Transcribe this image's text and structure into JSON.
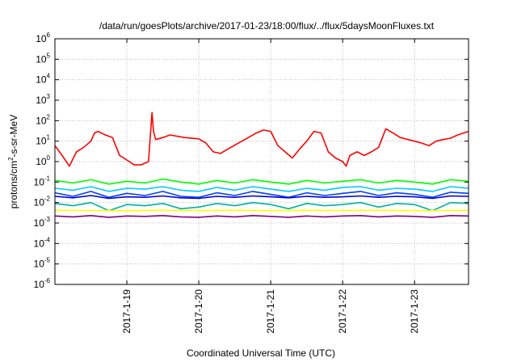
{
  "chart_data": {
    "type": "line",
    "title": "/data/run/goesPlots/archive/2017-01-23/18:00/flux/../flux/5daysMoonFluxes.txt",
    "xlabel": "Coordinated Universal Time (UTC)",
    "ylabel": "protons/cm2-s-sr-MeV",
    "ylabel_parts": {
      "a": "protons/cm",
      "sup": "2",
      "b": "-s-sr-MeV"
    },
    "y_scale": "log",
    "ylim": [
      1e-06,
      1000000.0
    ],
    "y_ticks": [
      {
        "base": "10",
        "exp": "-6",
        "value": 1e-06
      },
      {
        "base": "10",
        "exp": "-5",
        "value": 1e-05
      },
      {
        "base": "10",
        "exp": "-4",
        "value": 0.0001
      },
      {
        "base": "10",
        "exp": "-3",
        "value": 0.001
      },
      {
        "base": "10",
        "exp": "-2",
        "value": 0.01
      },
      {
        "base": "10",
        "exp": "-1",
        "value": 0.1
      },
      {
        "base": "10",
        "exp": "0",
        "value": 1
      },
      {
        "base": "10",
        "exp": "1",
        "value": 10
      },
      {
        "base": "10",
        "exp": "2",
        "value": 100
      },
      {
        "base": "10",
        "exp": "3",
        "value": 1000
      },
      {
        "base": "10",
        "exp": "4",
        "value": 10000
      },
      {
        "base": "10",
        "exp": "5",
        "value": 100000
      },
      {
        "base": "10",
        "exp": "6",
        "value": 1000000
      }
    ],
    "x_unit": "days since 2017-01-18 00:00 UTC",
    "xlim": [
      0.0,
      5.75
    ],
    "x_ticks": [
      {
        "label": "2017-1-19",
        "value": 1
      },
      {
        "label": "2017-1-20",
        "value": 2
      },
      {
        "label": "2017-1-21",
        "value": 3
      },
      {
        "label": "2017-1-22",
        "value": 4
      },
      {
        "label": "2017-1-23",
        "value": 5
      }
    ],
    "grid": true,
    "series": [
      {
        "color": "#ff0000",
        "x": [
          0.0,
          0.1,
          0.2,
          0.3,
          0.4,
          0.5,
          0.55,
          0.6,
          0.7,
          0.8,
          0.9,
          1.0,
          1.1,
          1.2,
          1.3,
          1.35,
          1.37,
          1.4,
          1.5,
          1.6,
          1.8,
          2.0,
          2.1,
          2.2,
          2.3,
          2.4,
          2.6,
          2.8,
          2.9,
          3.0,
          3.1,
          3.2,
          3.3,
          3.4,
          3.5,
          3.6,
          3.7,
          3.8,
          3.9,
          4.0,
          4.05,
          4.1,
          4.2,
          4.3,
          4.4,
          4.5,
          4.6,
          4.7,
          4.8,
          5.0,
          5.1,
          5.2,
          5.3,
          5.4,
          5.5,
          5.6,
          5.75
        ],
        "values": [
          6,
          2,
          0.6,
          3,
          5,
          10,
          25,
          30,
          20,
          15,
          2,
          1.2,
          0.7,
          0.7,
          1,
          250,
          30,
          12,
          15,
          20,
          15,
          13,
          8,
          3,
          2.5,
          4,
          10,
          25,
          35,
          30,
          6,
          3,
          1.5,
          4,
          10,
          30,
          25,
          3,
          1.5,
          1,
          0.6,
          2,
          3,
          2,
          3,
          5,
          40,
          25,
          15,
          10,
          8,
          6,
          10,
          12,
          14,
          20,
          30
        ]
      },
      {
        "color": "#00ff00",
        "x": [
          0.0,
          0.25,
          0.5,
          0.75,
          1.0,
          1.25,
          1.5,
          1.75,
          2.0,
          2.25,
          2.5,
          2.75,
          3.0,
          3.25,
          3.5,
          3.75,
          4.0,
          4.25,
          4.5,
          4.75,
          5.0,
          5.25,
          5.5,
          5.75
        ],
        "values": [
          0.12,
          0.09,
          0.13,
          0.08,
          0.11,
          0.09,
          0.14,
          0.1,
          0.08,
          0.12,
          0.09,
          0.13,
          0.1,
          0.08,
          0.12,
          0.09,
          0.11,
          0.13,
          0.09,
          0.12,
          0.1,
          0.08,
          0.13,
          0.11
        ]
      },
      {
        "color": "#00c8ff",
        "x": [
          0.0,
          0.25,
          0.5,
          0.75,
          1.0,
          1.25,
          1.5,
          1.75,
          2.0,
          2.25,
          2.5,
          2.75,
          3.0,
          3.25,
          3.5,
          3.75,
          4.0,
          4.25,
          4.5,
          4.75,
          5.0,
          5.25,
          5.5,
          5.75
        ],
        "values": [
          0.05,
          0.04,
          0.06,
          0.035,
          0.05,
          0.045,
          0.06,
          0.04,
          0.035,
          0.055,
          0.04,
          0.06,
          0.045,
          0.035,
          0.05,
          0.04,
          0.055,
          0.06,
          0.04,
          0.05,
          0.045,
          0.035,
          0.06,
          0.05
        ]
      },
      {
        "color": "#0040ff",
        "x": [
          0.0,
          0.25,
          0.5,
          0.75,
          1.0,
          1.25,
          1.5,
          1.75,
          2.0,
          2.25,
          2.5,
          2.75,
          3.0,
          3.25,
          3.5,
          3.75,
          4.0,
          4.25,
          4.5,
          4.75,
          5.0,
          5.25,
          5.5,
          5.75
        ],
        "values": [
          0.03,
          0.02,
          0.035,
          0.018,
          0.028,
          0.022,
          0.035,
          0.02,
          0.018,
          0.03,
          0.022,
          0.035,
          0.025,
          0.018,
          0.03,
          0.022,
          0.028,
          0.035,
          0.022,
          0.03,
          0.025,
          0.018,
          0.032,
          0.028
        ]
      },
      {
        "color": "#0000cc",
        "x": [
          0.0,
          0.25,
          0.5,
          0.75,
          1.0,
          1.25,
          1.5,
          1.75,
          2.0,
          2.25,
          2.5,
          2.75,
          3.0,
          3.25,
          3.5,
          3.75,
          4.0,
          4.25,
          4.5,
          4.75,
          5.0,
          5.25,
          5.5,
          5.75
        ],
        "values": [
          0.02,
          0.017,
          0.022,
          0.016,
          0.019,
          0.018,
          0.021,
          0.017,
          0.016,
          0.02,
          0.018,
          0.021,
          0.019,
          0.017,
          0.02,
          0.018,
          0.019,
          0.021,
          0.018,
          0.02,
          0.019,
          0.016,
          0.021,
          0.02
        ]
      },
      {
        "color": "#00b0a0",
        "x": [
          0.0,
          0.25,
          0.5,
          0.75,
          1.0,
          1.25,
          1.5,
          1.75,
          2.0,
          2.25,
          2.5,
          2.75,
          3.0,
          3.25,
          3.5,
          3.75,
          4.0,
          4.25,
          4.5,
          4.75,
          5.0,
          5.25,
          5.5,
          5.75
        ],
        "values": [
          0.009,
          0.007,
          0.01,
          0.004,
          0.008,
          0.007,
          0.009,
          0.005,
          0.006,
          0.009,
          0.007,
          0.01,
          0.008,
          0.005,
          0.009,
          0.007,
          0.008,
          0.01,
          0.006,
          0.009,
          0.008,
          0.004,
          0.01,
          0.009
        ]
      },
      {
        "color": "#ffff00",
        "x": [
          0.0,
          0.5,
          1.0,
          1.5,
          2.0,
          2.5,
          3.0,
          3.5,
          4.0,
          4.5,
          5.0,
          5.5,
          5.75
        ],
        "values": [
          0.0042,
          0.0041,
          0.004,
          0.0042,
          0.0041,
          0.0042,
          0.004,
          0.0042,
          0.0041,
          0.0042,
          0.004,
          0.0041,
          0.0042
        ]
      },
      {
        "color": "#800080",
        "x": [
          0.0,
          0.25,
          0.5,
          0.75,
          1.0,
          1.25,
          1.5,
          1.75,
          2.0,
          2.25,
          2.5,
          2.75,
          3.0,
          3.25,
          3.5,
          3.75,
          4.0,
          4.25,
          4.5,
          4.75,
          5.0,
          5.25,
          5.5,
          5.75
        ],
        "values": [
          0.0022,
          0.002,
          0.0023,
          0.0019,
          0.0022,
          0.0021,
          0.0023,
          0.002,
          0.0019,
          0.0022,
          0.002,
          0.0023,
          0.0021,
          0.0019,
          0.0022,
          0.002,
          0.0022,
          0.0023,
          0.002,
          0.0022,
          0.0021,
          0.0019,
          0.0023,
          0.0022
        ]
      }
    ]
  }
}
